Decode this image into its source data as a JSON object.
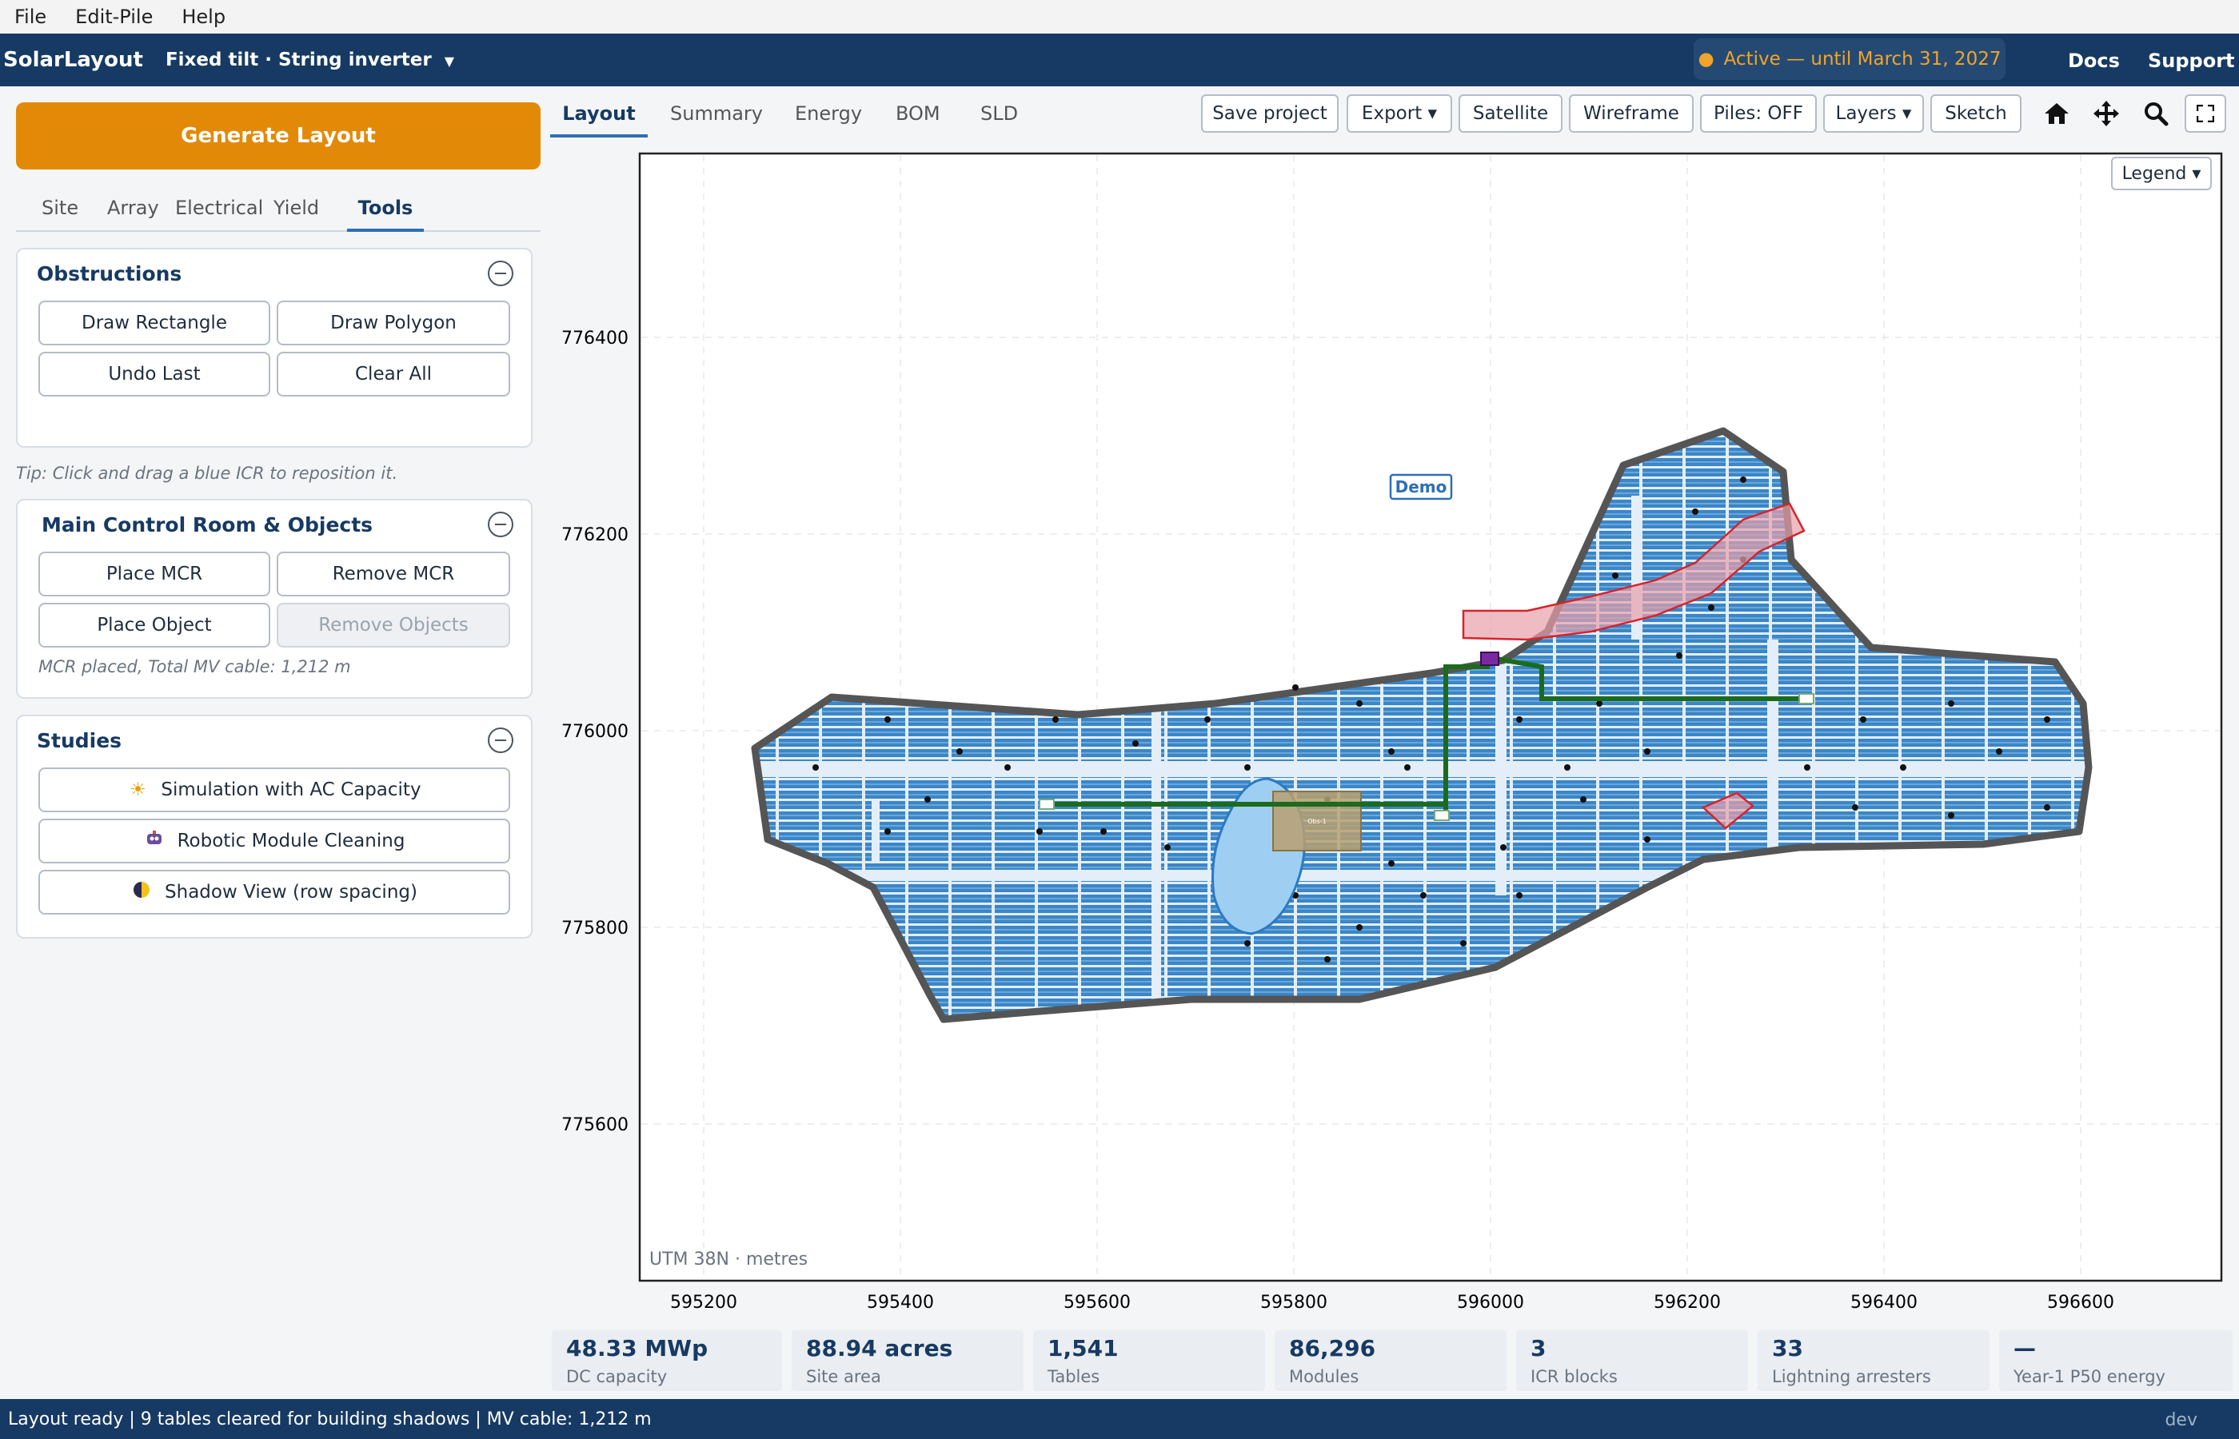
{
  "menu": [
    "File",
    "Edit-Pile",
    "Help"
  ],
  "header": {
    "brand": "SolarLayout",
    "mode": "Fixed tilt · String inverter",
    "license": "Active — until March 31, 2027",
    "license_color": "#f1a42b",
    "links": [
      "Docs",
      "Support"
    ]
  },
  "sidebar": {
    "generate_label": "Generate Layout",
    "tabs": [
      "Site",
      "Array",
      "Electrical",
      "Yield",
      "Tools"
    ],
    "active_tab": "Tools",
    "obstructions": {
      "title": "Obstructions",
      "buttons": [
        "Draw Rectangle",
        "Draw Polygon",
        "Undo Last",
        "Clear All"
      ]
    },
    "tip": "Tip: Click and drag a blue ICR to reposition it.",
    "mcr": {
      "title": "Main Control Room & Objects",
      "buttons": [
        "Place MCR",
        "Remove MCR",
        "Place Object",
        "Remove Objects"
      ],
      "status": "MCR placed, Total MV cable: 1,212 m"
    },
    "studies": {
      "title": "Studies",
      "items": [
        {
          "label": "Simulation with AC Capacity",
          "icon": "sun-icon"
        },
        {
          "label": "Robotic Module Cleaning",
          "icon": "robot-icon"
        },
        {
          "label": "Shadow View (row spacing)",
          "icon": "half-moon-icon"
        }
      ]
    }
  },
  "toolbar": {
    "tabs": [
      "Layout",
      "Summary",
      "Energy",
      "BOM",
      "SLD"
    ],
    "active_tab": "Layout",
    "buttons": [
      "Save project",
      "Export ▾",
      "Satellite",
      "Wireframe",
      "Piles: OFF",
      "Layers ▾",
      "Sketch"
    ],
    "icons": [
      "home-icon",
      "pan-icon",
      "zoom-icon",
      "fullscreen-icon"
    ]
  },
  "map": {
    "legend_label": "Legend ▾",
    "crs_label": "UTM 38N · metres",
    "demo_label": "Demo",
    "object_label": "Obs-1",
    "x_ticks": [
      "595200",
      "595400",
      "595600",
      "595800",
      "596000",
      "596200",
      "596400",
      "596600"
    ],
    "y_ticks": [
      "776400",
      "776200",
      "776000",
      "775800",
      "775600"
    ],
    "colors": {
      "panel": "#3a86c8",
      "boundary": "#555555",
      "cable": "#1c6b1c",
      "exclusion": "#e8a0aa",
      "pond": "#9ecff2",
      "object": "#b8a070"
    }
  },
  "stats": [
    {
      "value": "48.33 MWp",
      "label": "DC capacity"
    },
    {
      "value": "88.94 acres",
      "label": "Site area"
    },
    {
      "value": "1,541",
      "label": "Tables"
    },
    {
      "value": "86,296",
      "label": "Modules"
    },
    {
      "value": "3",
      "label": "ICR blocks"
    },
    {
      "value": "33",
      "label": "Lightning arresters"
    },
    {
      "value": "—",
      "label": "Year-1 P50 energy"
    }
  ],
  "statusbar": {
    "message": "Layout ready | 9 tables cleared for building shadows | MV cable: 1,212 m",
    "env": "dev"
  }
}
